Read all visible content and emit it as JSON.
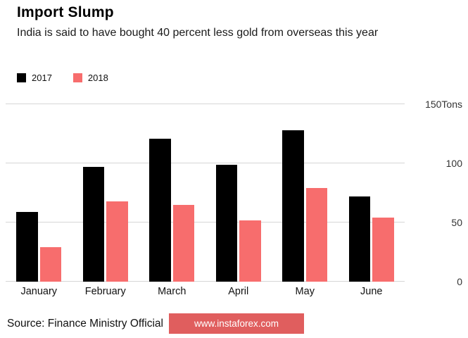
{
  "header": {
    "title": "Import Slump",
    "subtitle": "India is said to have bought 40 percent less gold from overseas this year"
  },
  "legend": [
    {
      "label": "2017",
      "color": "#000000"
    },
    {
      "label": "2018",
      "color": "#f76d6d"
    }
  ],
  "footer": {
    "source": "Source: Finance Ministry Official",
    "watermark": "www.instaforex.com",
    "watermark_bg": "#e05e5e"
  },
  "chart_data": {
    "type": "bar",
    "title": "Import Slump",
    "subtitle": "India is said to have bought 40 percent less gold from overseas this year",
    "categories": [
      "January",
      "February",
      "March",
      "April",
      "May",
      "June"
    ],
    "series": [
      {
        "name": "2017",
        "color": "#000000",
        "values": [
          59,
          97,
          121,
          99,
          128,
          72
        ]
      },
      {
        "name": "2018",
        "color": "#f76d6d",
        "values": [
          29,
          68,
          65,
          52,
          79,
          54
        ]
      }
    ],
    "unit": "Tons",
    "ylim": [
      0,
      150
    ],
    "yticks": [
      {
        "value": 0,
        "label": "0"
      },
      {
        "value": 50,
        "label": "50"
      },
      {
        "value": 100,
        "label": "100"
      },
      {
        "value": 150,
        "label": "150Tons"
      }
    ],
    "grid": "horizontal",
    "legend_position": "top-left",
    "source": "Source: Finance Ministry Official"
  }
}
